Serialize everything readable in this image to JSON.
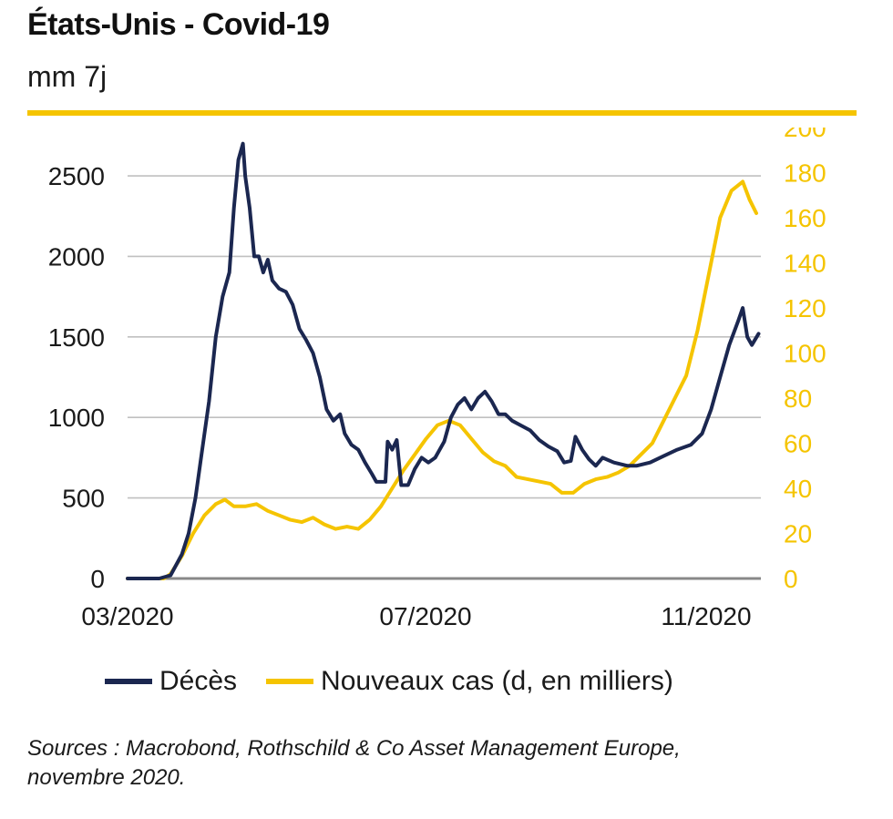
{
  "header": {
    "title": "États-Unis - Covid-19",
    "subtitle": "mm 7j"
  },
  "footer": {
    "source_line1": "Sources : Macrobond, Rothschild & Co Asset Management Europe,",
    "source_line2": "novembre 2020."
  },
  "colors": {
    "deaths": "#1b2750",
    "cases": "#f5c400",
    "accent_rule": "#f5c400",
    "grid": "#c0c0c0",
    "zero_axis": "#888888"
  },
  "chart_data": {
    "type": "line",
    "title": "États-Unis - Covid-19",
    "subtitle": "mm 7j",
    "x_ticks": [
      "03/2020",
      "07/2020",
      "11/2020"
    ],
    "y_left": {
      "ticks": [
        0,
        500,
        1000,
        1500,
        2000,
        2500
      ],
      "lim": [
        0,
        2800
      ]
    },
    "y_right": {
      "ticks": [
        0,
        20,
        40,
        60,
        80,
        100,
        120,
        140,
        160,
        180,
        200
      ],
      "lim": [
        0,
        200
      ]
    },
    "grid": true,
    "legend_position": "bottom",
    "series": [
      {
        "name": "Décès",
        "axis": "left",
        "color": "#1b2750",
        "points": [
          [
            "2020-03-01",
            0
          ],
          [
            "2020-03-15",
            0
          ],
          [
            "2020-03-20",
            20
          ],
          [
            "2020-03-25",
            150
          ],
          [
            "2020-03-28",
            280
          ],
          [
            "2020-03-31",
            500
          ],
          [
            "2020-04-03",
            800
          ],
          [
            "2020-04-06",
            1100
          ],
          [
            "2020-04-09",
            1500
          ],
          [
            "2020-04-12",
            1750
          ],
          [
            "2020-04-15",
            1900
          ],
          [
            "2020-04-17",
            2300
          ],
          [
            "2020-04-19",
            2600
          ],
          [
            "2020-04-21",
            2700
          ],
          [
            "2020-04-22",
            2500
          ],
          [
            "2020-04-24",
            2300
          ],
          [
            "2020-04-26",
            2000
          ],
          [
            "2020-04-28",
            2000
          ],
          [
            "2020-04-30",
            1900
          ],
          [
            "2020-05-02",
            1980
          ],
          [
            "2020-05-04",
            1850
          ],
          [
            "2020-05-07",
            1800
          ],
          [
            "2020-05-10",
            1780
          ],
          [
            "2020-05-13",
            1700
          ],
          [
            "2020-05-16",
            1550
          ],
          [
            "2020-05-19",
            1480
          ],
          [
            "2020-05-22",
            1400
          ],
          [
            "2020-05-25",
            1250
          ],
          [
            "2020-05-28",
            1050
          ],
          [
            "2020-05-31",
            980
          ],
          [
            "2020-06-03",
            1020
          ],
          [
            "2020-06-05",
            900
          ],
          [
            "2020-06-08",
            830
          ],
          [
            "2020-06-11",
            800
          ],
          [
            "2020-06-14",
            720
          ],
          [
            "2020-06-17",
            650
          ],
          [
            "2020-06-19",
            600
          ],
          [
            "2020-06-23",
            600
          ],
          [
            "2020-06-24",
            850
          ],
          [
            "2020-06-26",
            800
          ],
          [
            "2020-06-28",
            860
          ],
          [
            "2020-06-30",
            580
          ],
          [
            "2020-07-03",
            580
          ],
          [
            "2020-07-06",
            680
          ],
          [
            "2020-07-09",
            750
          ],
          [
            "2020-07-12",
            720
          ],
          [
            "2020-07-15",
            750
          ],
          [
            "2020-07-19",
            850
          ],
          [
            "2020-07-22",
            1000
          ],
          [
            "2020-07-25",
            1080
          ],
          [
            "2020-07-28",
            1120
          ],
          [
            "2020-07-31",
            1050
          ],
          [
            "2020-08-03",
            1120
          ],
          [
            "2020-08-06",
            1160
          ],
          [
            "2020-08-09",
            1100
          ],
          [
            "2020-08-12",
            1020
          ],
          [
            "2020-08-15",
            1020
          ],
          [
            "2020-08-18",
            980
          ],
          [
            "2020-08-22",
            950
          ],
          [
            "2020-08-26",
            920
          ],
          [
            "2020-08-30",
            860
          ],
          [
            "2020-09-03",
            820
          ],
          [
            "2020-09-07",
            790
          ],
          [
            "2020-09-10",
            720
          ],
          [
            "2020-09-13",
            730
          ],
          [
            "2020-09-15",
            880
          ],
          [
            "2020-09-18",
            800
          ],
          [
            "2020-09-21",
            740
          ],
          [
            "2020-09-24",
            700
          ],
          [
            "2020-09-27",
            750
          ],
          [
            "2020-10-02",
            720
          ],
          [
            "2020-10-08",
            700
          ],
          [
            "2020-10-12",
            700
          ],
          [
            "2020-10-18",
            720
          ],
          [
            "2020-10-24",
            760
          ],
          [
            "2020-10-30",
            800
          ],
          [
            "2020-11-05",
            830
          ],
          [
            "2020-11-10",
            900
          ],
          [
            "2020-11-14",
            1050
          ],
          [
            "2020-11-18",
            1250
          ],
          [
            "2020-11-22",
            1450
          ],
          [
            "2020-11-26",
            1600
          ],
          [
            "2020-11-28",
            1680
          ],
          [
            "2020-11-30",
            1500
          ],
          [
            "2020-12-02",
            1450
          ],
          [
            "2020-12-05",
            1520
          ]
        ]
      },
      {
        "name": "Nouveaux cas (d, en milliers)",
        "axis": "right",
        "color": "#f5c400",
        "points": [
          [
            "2020-03-01",
            0
          ],
          [
            "2020-03-17",
            0
          ],
          [
            "2020-03-20",
            2
          ],
          [
            "2020-03-25",
            10
          ],
          [
            "2020-03-30",
            20
          ],
          [
            "2020-04-04",
            28
          ],
          [
            "2020-04-09",
            33
          ],
          [
            "2020-04-13",
            35
          ],
          [
            "2020-04-17",
            32
          ],
          [
            "2020-04-22",
            32
          ],
          [
            "2020-04-27",
            33
          ],
          [
            "2020-05-02",
            30
          ],
          [
            "2020-05-07",
            28
          ],
          [
            "2020-05-12",
            26
          ],
          [
            "2020-05-17",
            25
          ],
          [
            "2020-05-22",
            27
          ],
          [
            "2020-05-27",
            24
          ],
          [
            "2020-06-01",
            22
          ],
          [
            "2020-06-06",
            23
          ],
          [
            "2020-06-11",
            22
          ],
          [
            "2020-06-16",
            26
          ],
          [
            "2020-06-21",
            32
          ],
          [
            "2020-06-26",
            40
          ],
          [
            "2020-07-01",
            48
          ],
          [
            "2020-07-06",
            55
          ],
          [
            "2020-07-11",
            62
          ],
          [
            "2020-07-16",
            68
          ],
          [
            "2020-07-21",
            70
          ],
          [
            "2020-07-26",
            68
          ],
          [
            "2020-07-31",
            62
          ],
          [
            "2020-08-05",
            56
          ],
          [
            "2020-08-10",
            52
          ],
          [
            "2020-08-15",
            50
          ],
          [
            "2020-08-20",
            45
          ],
          [
            "2020-08-25",
            44
          ],
          [
            "2020-08-30",
            43
          ],
          [
            "2020-09-04",
            42
          ],
          [
            "2020-09-09",
            38
          ],
          [
            "2020-09-14",
            38
          ],
          [
            "2020-09-19",
            42
          ],
          [
            "2020-09-24",
            44
          ],
          [
            "2020-09-29",
            45
          ],
          [
            "2020-10-04",
            47
          ],
          [
            "2020-10-09",
            50
          ],
          [
            "2020-10-14",
            55
          ],
          [
            "2020-10-19",
            60
          ],
          [
            "2020-10-24",
            70
          ],
          [
            "2020-10-29",
            80
          ],
          [
            "2020-11-03",
            90
          ],
          [
            "2020-11-08",
            110
          ],
          [
            "2020-11-13",
            135
          ],
          [
            "2020-11-18",
            160
          ],
          [
            "2020-11-23",
            172
          ],
          [
            "2020-11-28",
            176
          ],
          [
            "2020-12-01",
            168
          ],
          [
            "2020-12-04",
            162
          ]
        ]
      }
    ]
  }
}
